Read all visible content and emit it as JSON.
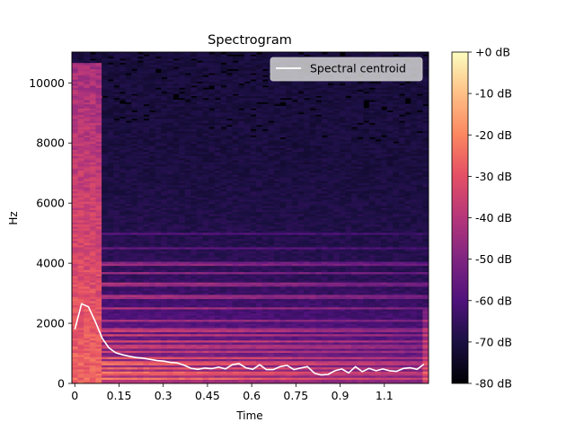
{
  "chart_data": {
    "type": "heatmap",
    "title": "Spectrogram",
    "xlabel": "Time",
    "ylabel": "Hz",
    "xlim": [
      -0.01,
      1.2
    ],
    "ylim": [
      0,
      11025
    ],
    "xticks": [
      0,
      0.15,
      0.3,
      0.45,
      0.6,
      0.75,
      0.9,
      1.05
    ],
    "xtick_labels": [
      "0",
      "0.15",
      "0.3",
      "0.45",
      "0.6",
      "0.75",
      "0.9",
      "1.1"
    ],
    "yticks": [
      0,
      2000,
      4000,
      6000,
      8000,
      10000
    ],
    "ytick_labels": [
      "0",
      "2000",
      "4000",
      "6000",
      "8000",
      "10000"
    ],
    "colorbar": {
      "range_db": [
        -80,
        0
      ],
      "ticks": [
        0,
        -10,
        -20,
        -30,
        -40,
        -50,
        -60,
        -70,
        -80
      ],
      "tick_labels": [
        "+0 dB",
        "-10 dB",
        "-20 dB",
        "-30 dB",
        "-40 dB",
        "-50 dB",
        "-60 dB",
        "-70 dB",
        "-80 dB"
      ],
      "colormap": "magma"
    },
    "legend": {
      "position": "top-right",
      "entries": [
        "Spectral centroid"
      ]
    },
    "series": [
      {
        "name": "Spectral centroid",
        "color": "#ffffff",
        "x": [
          0,
          0.023,
          0.046,
          0.07,
          0.093,
          0.116,
          0.139,
          0.163,
          0.186,
          0.209,
          0.232,
          0.255,
          0.279,
          0.302,
          0.325,
          0.348,
          0.372,
          0.395,
          0.418,
          0.441,
          0.464,
          0.488,
          0.511,
          0.534,
          0.557,
          0.58,
          0.604,
          0.627,
          0.65,
          0.673,
          0.697,
          0.72,
          0.743,
          0.766,
          0.789,
          0.813,
          0.836,
          0.859,
          0.882,
          0.906,
          0.929,
          0.952,
          0.975,
          0.998,
          1.022,
          1.045,
          1.068,
          1.091,
          1.115,
          1.138,
          1.161,
          1.184
        ],
        "y": [
          1800,
          2650,
          2550,
          2050,
          1500,
          1180,
          1020,
          950,
          900,
          860,
          840,
          800,
          760,
          740,
          700,
          680,
          600,
          500,
          470,
          510,
          490,
          540,
          480,
          620,
          660,
          520,
          470,
          620,
          460,
          460,
          560,
          600,
          460,
          510,
          560,
          340,
          280,
          300,
          420,
          480,
          350,
          560,
          390,
          500,
          420,
          480,
          420,
          400,
          500,
          520,
          470,
          640
        ]
      }
    ],
    "heatmap_description": {
      "bright_bands_hz": [
        170,
        340,
        520,
        700,
        880,
        1060,
        1240,
        1420,
        1600,
        1800,
        2100,
        2500,
        2900,
        3300,
        3700,
        4000,
        4500,
        5000
      ],
      "transient_end_time": 0.1,
      "transient_top_hz": 10700
    }
  }
}
